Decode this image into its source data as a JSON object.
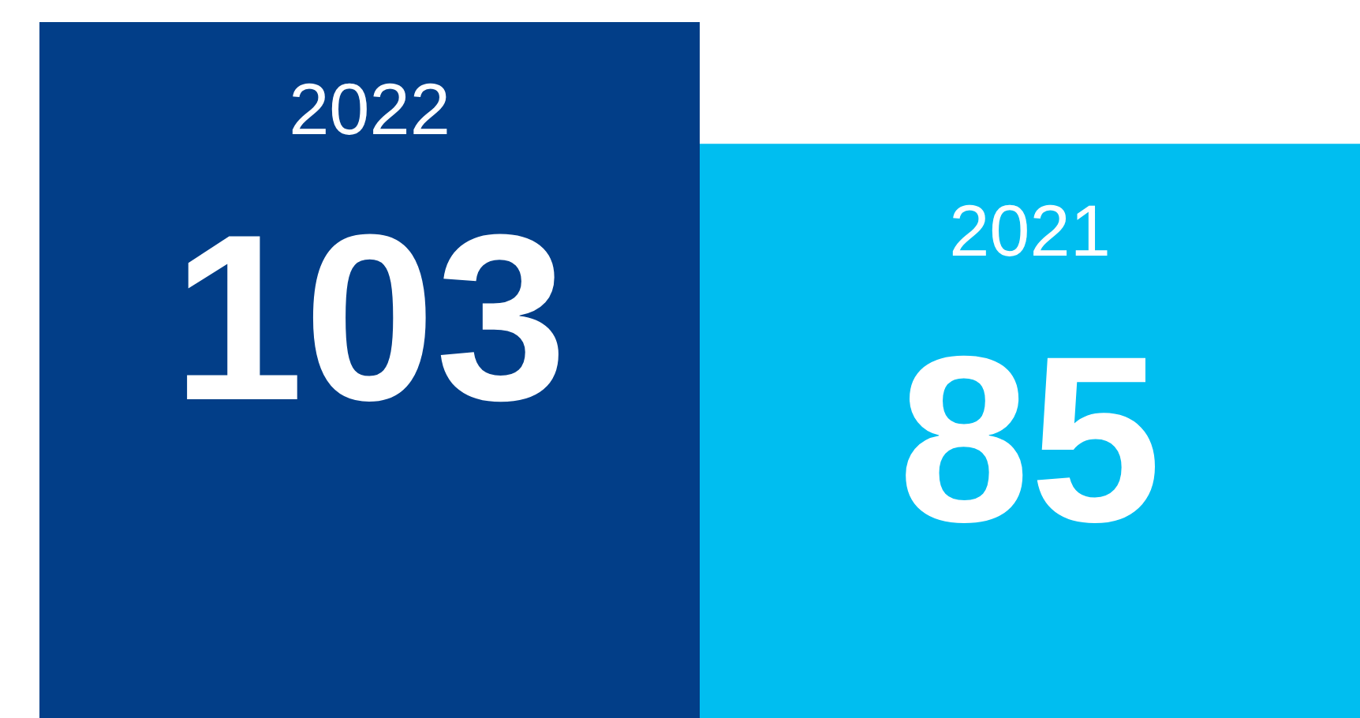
{
  "chart_data": {
    "type": "bar",
    "categories": [
      "2022",
      "2021"
    ],
    "values": [
      103,
      85
    ],
    "colors": [
      "#023e88",
      "#00bef0"
    ],
    "data_labels": true
  }
}
